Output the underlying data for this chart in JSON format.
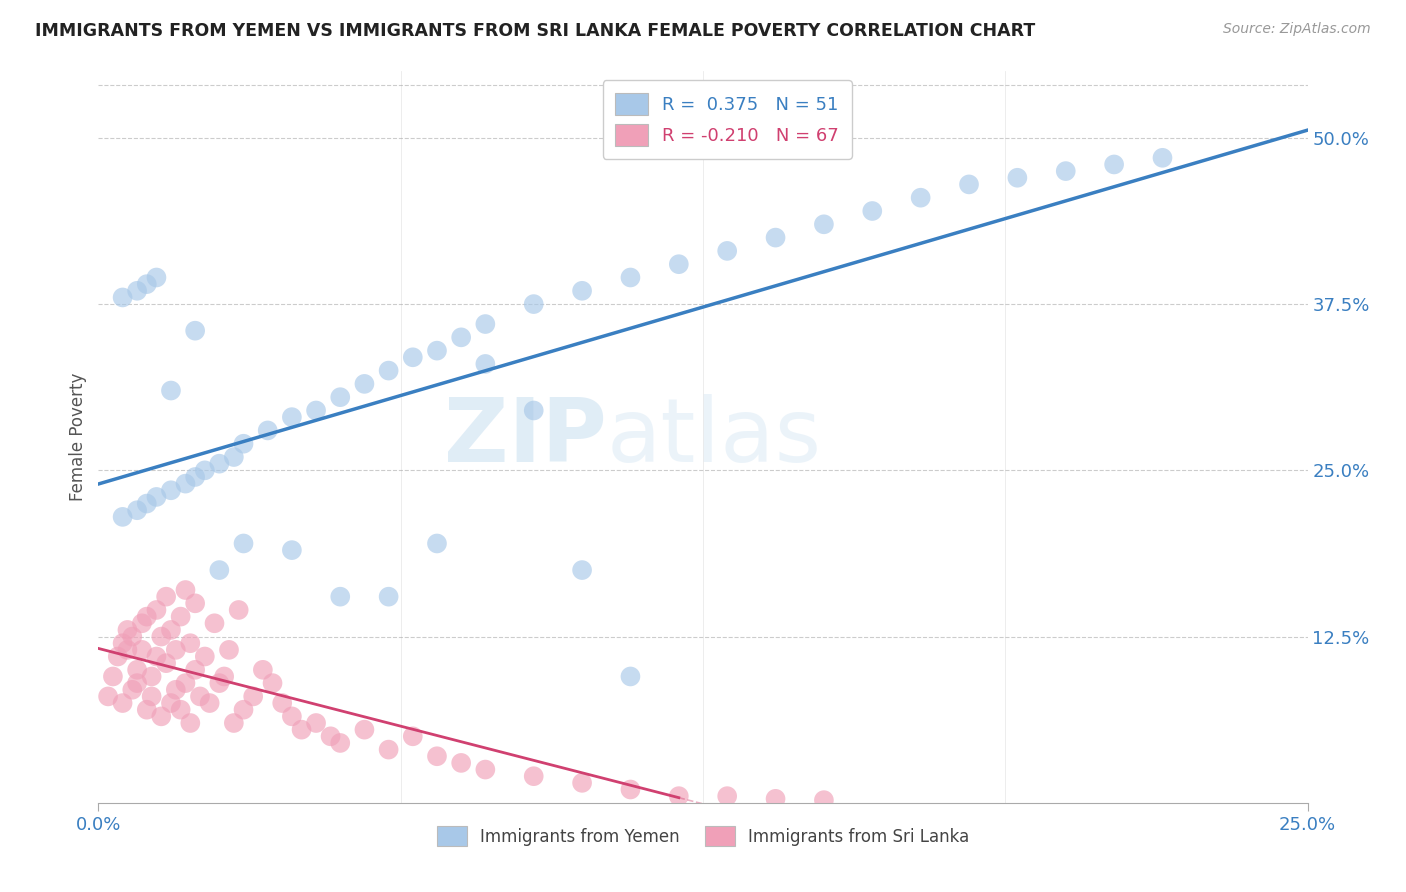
{
  "title": "IMMIGRANTS FROM YEMEN VS IMMIGRANTS FROM SRI LANKA FEMALE POVERTY CORRELATION CHART",
  "source": "Source: ZipAtlas.com",
  "ylabel": "Female Poverty",
  "xlim": [
    0.0,
    0.25
  ],
  "ylim": [
    0.0,
    0.55
  ],
  "color_yemen": "#a8c8e8",
  "color_srilanka": "#f0a0b8",
  "line_color_yemen": "#3a7fc1",
  "line_color_srilanka": "#d04070",
  "watermark_zip": "ZIP",
  "watermark_atlas": "atlas",
  "yticks": [
    0.125,
    0.25,
    0.375,
    0.5
  ],
  "ytick_labels": [
    "12.5%",
    "25.0%",
    "37.5%",
    "50.0%"
  ],
  "xticks": [
    0.0,
    0.25
  ],
  "xtick_labels": [
    "0.0%",
    "25.0%"
  ],
  "legend1_label": "R =  0.375   N = 51",
  "legend2_label": "R = -0.210   N = 67",
  "bottom_legend1": "Immigrants from Yemen",
  "bottom_legend2": "Immigrants from Sri Lanka",
  "yemen_x": [
    0.005,
    0.008,
    0.01,
    0.012,
    0.015,
    0.018,
    0.02,
    0.022,
    0.025,
    0.028,
    0.03,
    0.035,
    0.04,
    0.045,
    0.05,
    0.055,
    0.06,
    0.065,
    0.07,
    0.075,
    0.08,
    0.09,
    0.1,
    0.11,
    0.12,
    0.13,
    0.14,
    0.15,
    0.16,
    0.17,
    0.18,
    0.19,
    0.2,
    0.21,
    0.22,
    0.005,
    0.008,
    0.01,
    0.012,
    0.015,
    0.02,
    0.025,
    0.03,
    0.04,
    0.05,
    0.06,
    0.07,
    0.08,
    0.09,
    0.1,
    0.11
  ],
  "yemen_y": [
    0.215,
    0.22,
    0.225,
    0.23,
    0.235,
    0.24,
    0.245,
    0.25,
    0.255,
    0.26,
    0.27,
    0.28,
    0.29,
    0.295,
    0.305,
    0.315,
    0.325,
    0.335,
    0.34,
    0.35,
    0.36,
    0.375,
    0.385,
    0.395,
    0.405,
    0.415,
    0.425,
    0.435,
    0.445,
    0.455,
    0.465,
    0.47,
    0.475,
    0.48,
    0.485,
    0.38,
    0.385,
    0.39,
    0.395,
    0.31,
    0.355,
    0.175,
    0.195,
    0.19,
    0.155,
    0.155,
    0.195,
    0.33,
    0.295,
    0.175,
    0.095
  ],
  "srilanka_x": [
    0.002,
    0.003,
    0.004,
    0.005,
    0.005,
    0.006,
    0.006,
    0.007,
    0.007,
    0.008,
    0.008,
    0.009,
    0.009,
    0.01,
    0.01,
    0.011,
    0.011,
    0.012,
    0.012,
    0.013,
    0.013,
    0.014,
    0.014,
    0.015,
    0.015,
    0.016,
    0.016,
    0.017,
    0.017,
    0.018,
    0.018,
    0.019,
    0.019,
    0.02,
    0.02,
    0.021,
    0.022,
    0.023,
    0.024,
    0.025,
    0.026,
    0.027,
    0.028,
    0.029,
    0.03,
    0.032,
    0.034,
    0.036,
    0.038,
    0.04,
    0.042,
    0.045,
    0.048,
    0.05,
    0.055,
    0.06,
    0.065,
    0.07,
    0.075,
    0.08,
    0.09,
    0.1,
    0.11,
    0.12,
    0.13,
    0.14,
    0.15
  ],
  "srilanka_y": [
    0.08,
    0.095,
    0.11,
    0.12,
    0.075,
    0.115,
    0.13,
    0.085,
    0.125,
    0.09,
    0.1,
    0.135,
    0.115,
    0.07,
    0.14,
    0.08,
    0.095,
    0.11,
    0.145,
    0.125,
    0.065,
    0.105,
    0.155,
    0.075,
    0.13,
    0.085,
    0.115,
    0.07,
    0.14,
    0.09,
    0.16,
    0.06,
    0.12,
    0.1,
    0.15,
    0.08,
    0.11,
    0.075,
    0.135,
    0.09,
    0.095,
    0.115,
    0.06,
    0.145,
    0.07,
    0.08,
    0.1,
    0.09,
    0.075,
    0.065,
    0.055,
    0.06,
    0.05,
    0.045,
    0.055,
    0.04,
    0.05,
    0.035,
    0.03,
    0.025,
    0.02,
    0.015,
    0.01,
    0.005,
    0.005,
    0.003,
    0.002
  ]
}
